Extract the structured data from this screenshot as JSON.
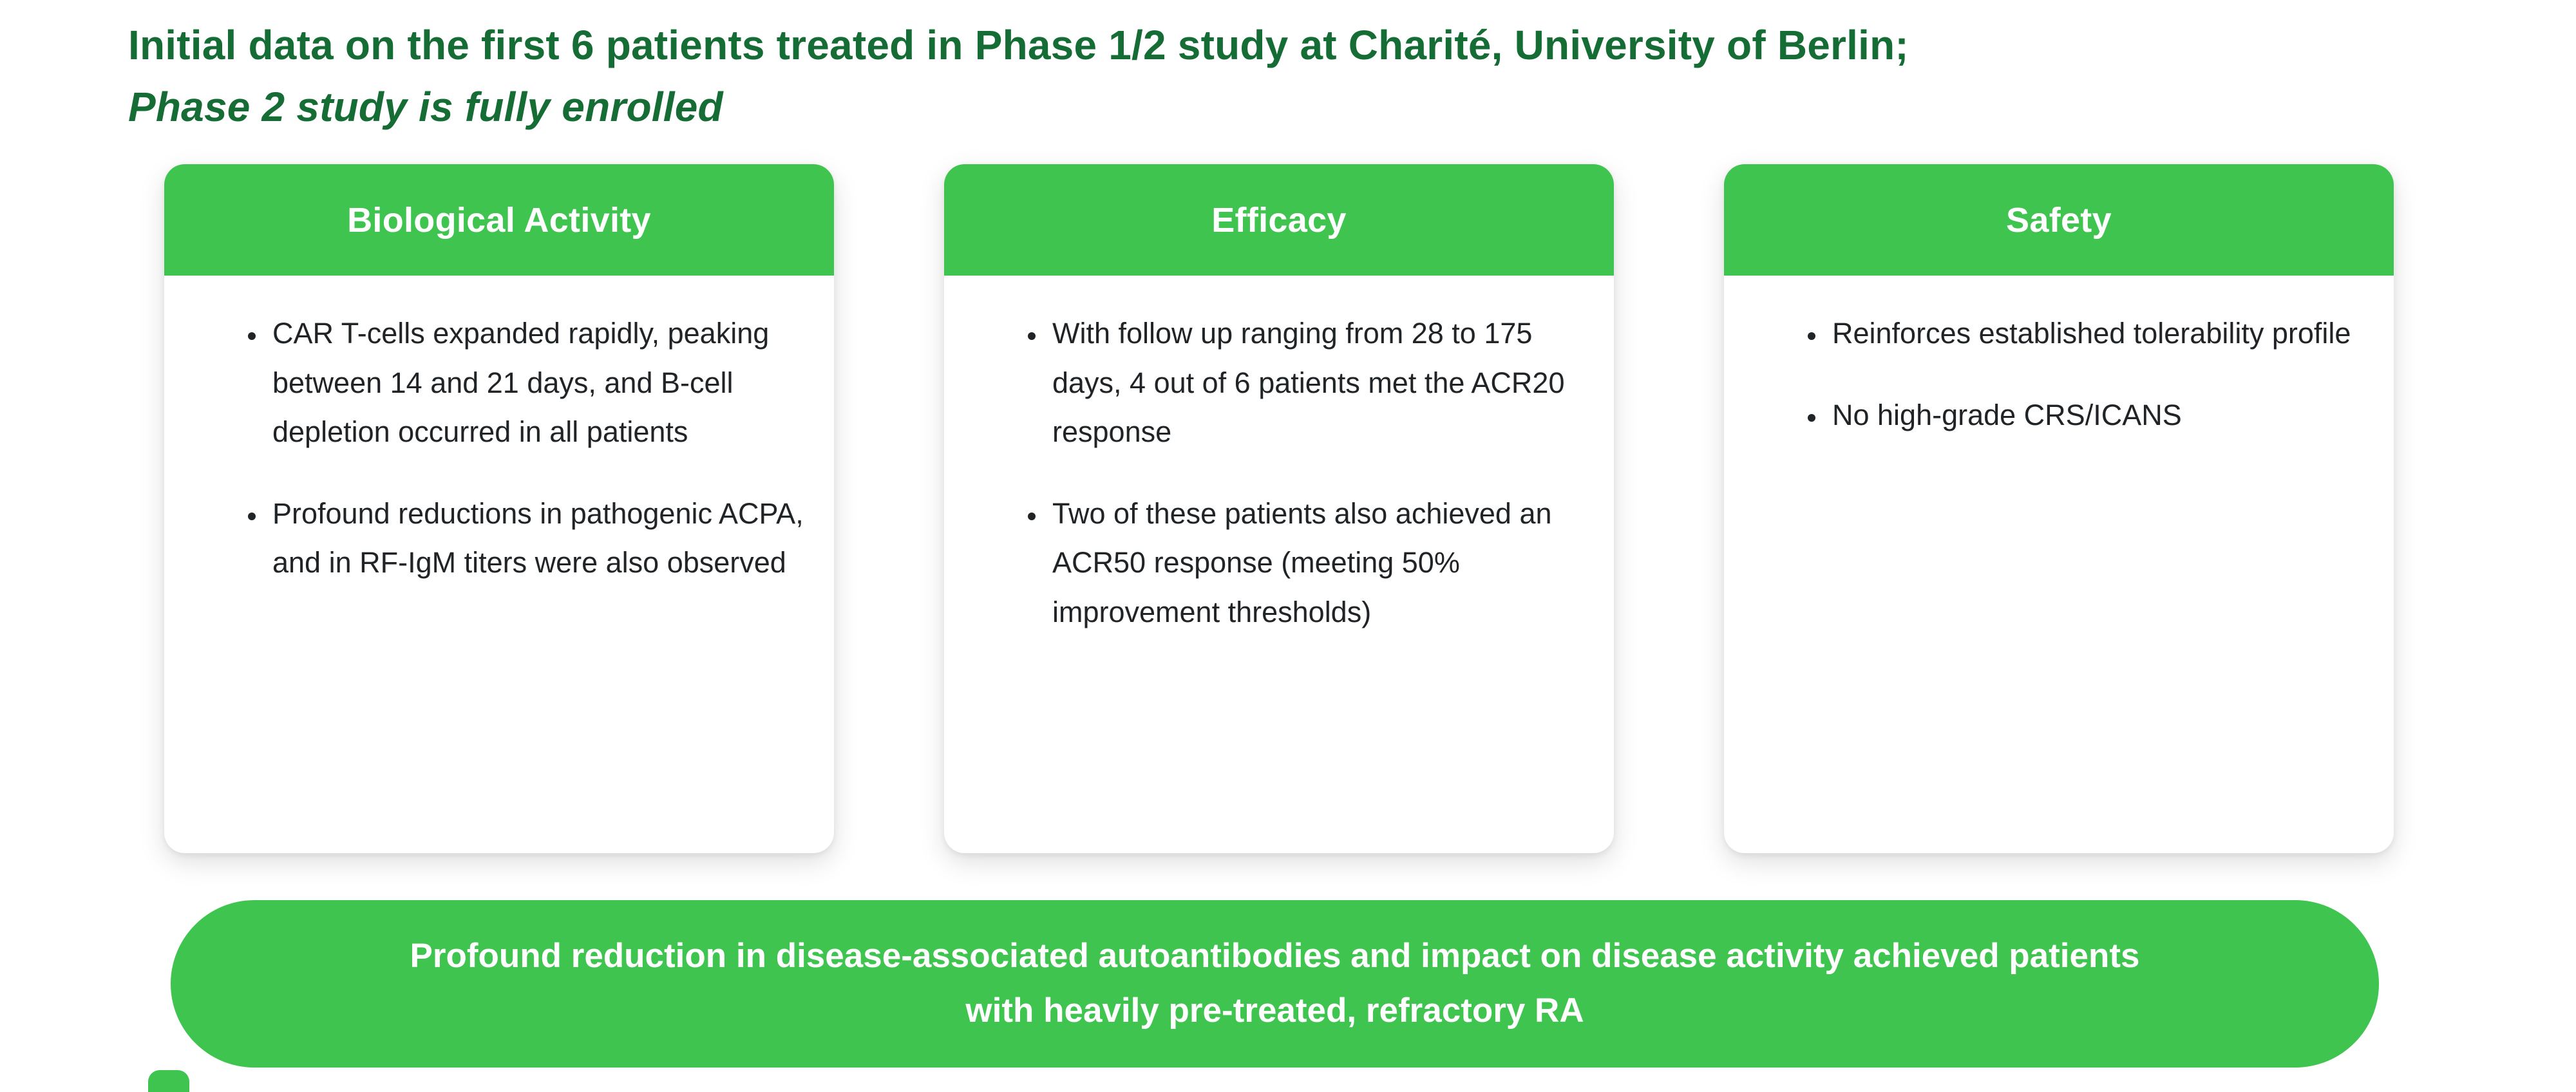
{
  "title": {
    "line1": "Initial data on the first 6 patients treated in Phase 1/2 study at Charité, University of Berlin;",
    "line2": "Phase 2 study is fully enrolled"
  },
  "cards": [
    {
      "header": "Biological Activity",
      "bullets": [
        "CAR T-cells expanded rapidly, peaking between 14 and 21 days, and B-cell depletion occurred in all patients",
        "Profound reductions in pathogenic ACPA, and in RF-IgM titers were also observed"
      ]
    },
    {
      "header": "Efficacy",
      "bullets": [
        "With follow up ranging from 28 to 175 days, 4 out of 6 patients met the ACR20 response",
        "Two of these patients also achieved an ACR50 response (meeting 50% improvement thresholds)"
      ]
    },
    {
      "header": "Safety",
      "bullets": [
        "Reinforces established tolerability profile",
        "No high-grade CRS/ICANS"
      ]
    }
  ],
  "banner": {
    "text": "Profound reduction in disease-associated autoantibodies and impact on disease activity achieved patients with heavily pre-treated, refractory RA"
  },
  "colors": {
    "accent_green": "#3FC44F",
    "title_green": "#156C35",
    "text_dark": "#212427"
  }
}
